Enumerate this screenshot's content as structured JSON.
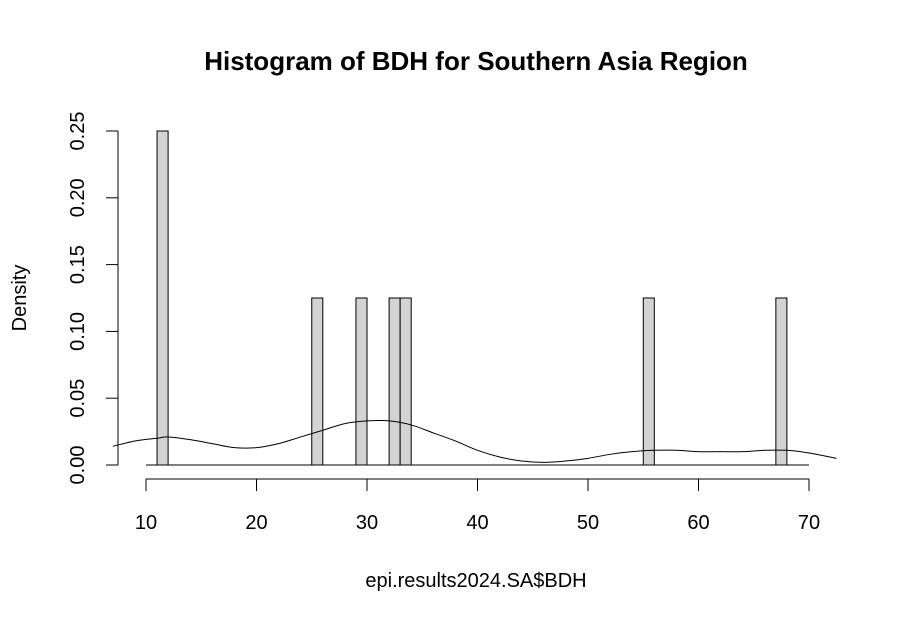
{
  "chart_data": {
    "type": "bar",
    "title": "Histogram of BDH for Southern Asia Region",
    "xlabel": "epi.results2024.SA$BDH",
    "ylabel": "Density",
    "xlim": [
      10,
      70
    ],
    "ylim": [
      0,
      0.25
    ],
    "x_ticks": [
      "10",
      "20",
      "30",
      "40",
      "50",
      "60",
      "70"
    ],
    "y_ticks": [
      "0.00",
      "0.05",
      "0.10",
      "0.15",
      "0.20",
      "0.25"
    ],
    "bin_width": 1,
    "bars": [
      {
        "x0": 11,
        "x1": 12,
        "density": 0.25
      },
      {
        "x0": 25,
        "x1": 26,
        "density": 0.125
      },
      {
        "x0": 29,
        "x1": 30,
        "density": 0.125
      },
      {
        "x0": 32,
        "x1": 33,
        "density": 0.125
      },
      {
        "x0": 33,
        "x1": 34,
        "density": 0.125
      },
      {
        "x0": 55,
        "x1": 56,
        "density": 0.125
      },
      {
        "x0": 67,
        "x1": 68,
        "density": 0.125
      }
    ],
    "density_curve": {
      "x": [
        7,
        9,
        11,
        12,
        14,
        16,
        18,
        20,
        22,
        24,
        26,
        28,
        30,
        32,
        34,
        36,
        38,
        40,
        42,
        44,
        46,
        48,
        50,
        52,
        54,
        56,
        58,
        60,
        62,
        64,
        66,
        68,
        70,
        72.5
      ],
      "y": [
        0.014,
        0.018,
        0.02,
        0.021,
        0.019,
        0.016,
        0.013,
        0.013,
        0.016,
        0.021,
        0.026,
        0.031,
        0.033,
        0.033,
        0.03,
        0.024,
        0.018,
        0.011,
        0.006,
        0.003,
        0.002,
        0.003,
        0.005,
        0.008,
        0.01,
        0.011,
        0.011,
        0.01,
        0.01,
        0.01,
        0.011,
        0.011,
        0.009,
        0.005
      ]
    },
    "bar_fill": "#d3d3d3",
    "bar_stroke": "#000000",
    "grid": false
  }
}
